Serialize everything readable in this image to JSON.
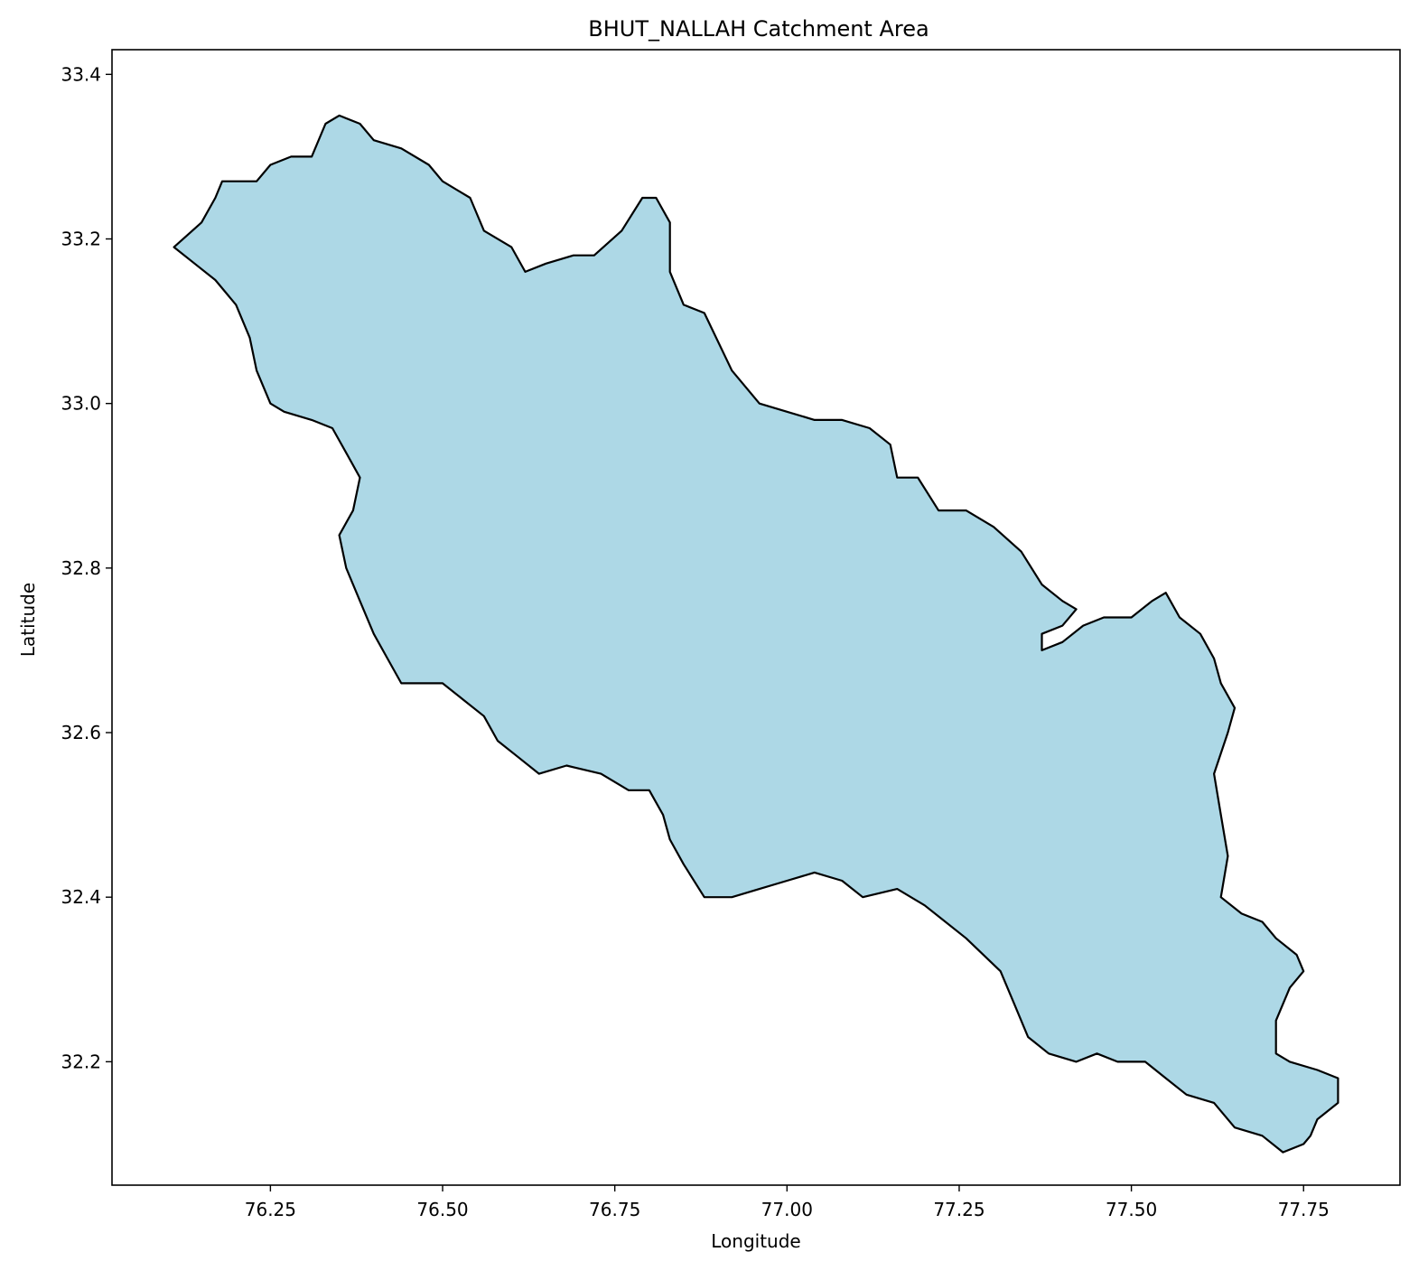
{
  "chart_data": {
    "type": "map",
    "title": "BHUT_NALLAH Catchment Area",
    "xlabel": "Longitude",
    "ylabel": "Latitude",
    "xlim": [
      76.02,
      77.89
    ],
    "ylim": [
      32.05,
      33.43
    ],
    "xticks": [
      76.25,
      76.5,
      76.75,
      77.0,
      77.25,
      77.5,
      77.75
    ],
    "xtick_labels": [
      "76.25",
      "76.50",
      "76.75",
      "77.00",
      "77.25",
      "77.50",
      "77.75"
    ],
    "yticks": [
      32.2,
      32.4,
      32.6,
      32.8,
      33.0,
      33.2,
      33.4
    ],
    "ytick_labels": [
      "32.2",
      "32.4",
      "32.6",
      "32.8",
      "33.0",
      "33.2",
      "33.4"
    ],
    "grid": false,
    "legend": "none",
    "colors": {
      "fill": "#add8e6",
      "edge": "#000000",
      "axes": "#000000"
    },
    "regions": [
      {
        "boundary": [
          [
            76.11,
            33.19
          ],
          [
            76.15,
            33.22
          ],
          [
            76.17,
            33.25
          ],
          [
            76.18,
            33.27
          ],
          [
            76.23,
            33.27
          ],
          [
            76.25,
            33.29
          ],
          [
            76.28,
            33.3
          ],
          [
            76.31,
            33.3
          ],
          [
            76.33,
            33.34
          ],
          [
            76.35,
            33.35
          ],
          [
            76.38,
            33.34
          ],
          [
            76.4,
            33.32
          ],
          [
            76.44,
            33.31
          ],
          [
            76.48,
            33.29
          ],
          [
            76.5,
            33.27
          ],
          [
            76.54,
            33.25
          ],
          [
            76.56,
            33.21
          ],
          [
            76.6,
            33.19
          ],
          [
            76.62,
            33.16
          ],
          [
            76.65,
            33.17
          ],
          [
            76.69,
            33.18
          ],
          [
            76.72,
            33.18
          ],
          [
            76.76,
            33.21
          ],
          [
            76.79,
            33.25
          ],
          [
            76.81,
            33.25
          ],
          [
            76.83,
            33.22
          ],
          [
            76.83,
            33.16
          ],
          [
            76.85,
            33.12
          ],
          [
            76.88,
            33.11
          ],
          [
            76.92,
            33.04
          ],
          [
            76.96,
            33.0
          ],
          [
            77.0,
            32.99
          ],
          [
            77.04,
            32.98
          ],
          [
            77.08,
            32.98
          ],
          [
            77.12,
            32.97
          ],
          [
            77.15,
            32.95
          ],
          [
            77.16,
            32.91
          ],
          [
            77.19,
            32.91
          ],
          [
            77.22,
            32.87
          ],
          [
            77.26,
            32.87
          ],
          [
            77.3,
            32.85
          ],
          [
            77.34,
            32.82
          ],
          [
            77.37,
            32.78
          ],
          [
            77.4,
            32.76
          ],
          [
            77.42,
            32.75
          ],
          [
            77.4,
            32.73
          ],
          [
            77.37,
            32.72
          ],
          [
            77.37,
            32.7
          ],
          [
            77.4,
            32.71
          ],
          [
            77.43,
            32.73
          ],
          [
            77.46,
            32.74
          ],
          [
            77.5,
            32.74
          ],
          [
            77.53,
            32.76
          ],
          [
            77.55,
            32.77
          ],
          [
            77.57,
            32.74
          ],
          [
            77.6,
            32.72
          ],
          [
            77.62,
            32.69
          ],
          [
            77.63,
            32.66
          ],
          [
            77.65,
            32.63
          ],
          [
            77.64,
            32.6
          ],
          [
            77.62,
            32.55
          ],
          [
            77.63,
            32.5
          ],
          [
            77.64,
            32.45
          ],
          [
            77.63,
            32.4
          ],
          [
            77.66,
            32.38
          ],
          [
            77.69,
            32.37
          ],
          [
            77.71,
            32.35
          ],
          [
            77.74,
            32.33
          ],
          [
            77.75,
            32.31
          ],
          [
            77.73,
            32.29
          ],
          [
            77.71,
            32.25
          ],
          [
            77.71,
            32.21
          ],
          [
            77.73,
            32.2
          ],
          [
            77.77,
            32.19
          ],
          [
            77.8,
            32.18
          ],
          [
            77.8,
            32.15
          ],
          [
            77.77,
            32.13
          ],
          [
            77.76,
            32.11
          ],
          [
            77.75,
            32.1
          ],
          [
            77.72,
            32.09
          ],
          [
            77.69,
            32.11
          ],
          [
            77.65,
            32.12
          ],
          [
            77.62,
            32.15
          ],
          [
            77.58,
            32.16
          ],
          [
            77.55,
            32.18
          ],
          [
            77.52,
            32.2
          ],
          [
            77.48,
            32.2
          ],
          [
            77.45,
            32.21
          ],
          [
            77.42,
            32.2
          ],
          [
            77.38,
            32.21
          ],
          [
            77.35,
            32.23
          ],
          [
            77.33,
            32.27
          ],
          [
            77.31,
            32.31
          ],
          [
            77.26,
            32.35
          ],
          [
            77.2,
            32.39
          ],
          [
            77.16,
            32.41
          ],
          [
            77.11,
            32.4
          ],
          [
            77.08,
            32.42
          ],
          [
            77.04,
            32.43
          ],
          [
            77.0,
            32.42
          ],
          [
            76.96,
            32.41
          ],
          [
            76.92,
            32.4
          ],
          [
            76.88,
            32.4
          ],
          [
            76.85,
            32.44
          ],
          [
            76.83,
            32.47
          ],
          [
            76.82,
            32.5
          ],
          [
            76.8,
            32.53
          ],
          [
            76.77,
            32.53
          ],
          [
            76.73,
            32.55
          ],
          [
            76.68,
            32.56
          ],
          [
            76.64,
            32.55
          ],
          [
            76.61,
            32.57
          ],
          [
            76.58,
            32.59
          ],
          [
            76.56,
            32.62
          ],
          [
            76.53,
            32.64
          ],
          [
            76.5,
            32.66
          ],
          [
            76.47,
            32.66
          ],
          [
            76.44,
            32.66
          ],
          [
            76.42,
            32.69
          ],
          [
            76.4,
            32.72
          ],
          [
            76.38,
            32.76
          ],
          [
            76.36,
            32.8
          ],
          [
            76.35,
            32.84
          ],
          [
            76.37,
            32.87
          ],
          [
            76.38,
            32.91
          ],
          [
            76.36,
            32.94
          ],
          [
            76.34,
            32.97
          ],
          [
            76.31,
            32.98
          ],
          [
            76.27,
            32.99
          ],
          [
            76.25,
            33.0
          ],
          [
            76.23,
            33.04
          ],
          [
            76.22,
            33.08
          ],
          [
            76.2,
            33.12
          ],
          [
            76.17,
            33.15
          ],
          [
            76.14,
            33.17
          ],
          [
            76.11,
            33.19
          ]
        ]
      }
    ]
  }
}
